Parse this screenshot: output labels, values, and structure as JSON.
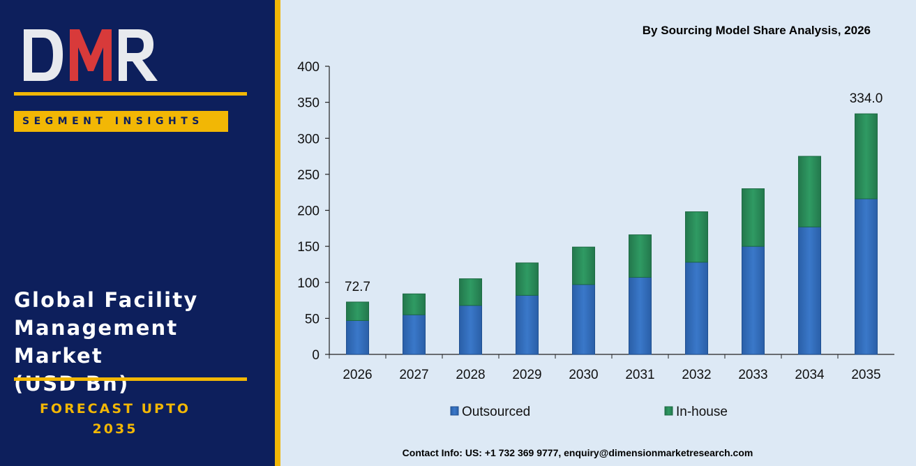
{
  "brand": {
    "logo_text": "DMR",
    "segment_label": "SEGMENT INSIGHTS",
    "market_title_lines": [
      "Global Facility",
      "Management Market",
      "(USD Bn)"
    ],
    "forecast_lines": [
      "FORECAST UPTO",
      "2035"
    ]
  },
  "colors": {
    "navy": "#0d1f5c",
    "gold": "#f2b705",
    "chart_bg": "#dde9f5",
    "outsourced": "#3a78c9",
    "inhouse": "#2f9a63"
  },
  "chart_data": {
    "type": "bar",
    "stacked": true,
    "title": "By Sourcing Model Share Analysis, 2026",
    "categories": [
      "2026",
      "2027",
      "2028",
      "2029",
      "2030",
      "2031",
      "2032",
      "2033",
      "2034",
      "2035"
    ],
    "series": [
      {
        "name": "Outsourced",
        "values": [
          47,
          55,
          68,
          82,
          97,
          107,
          128,
          150,
          177,
          216
        ]
      },
      {
        "name": "In-house",
        "values": [
          25.7,
          29,
          37,
          45,
          52,
          59,
          70,
          80,
          98,
          118
        ]
      }
    ],
    "totals": [
      72.7,
      84,
      105,
      127,
      149,
      166,
      198,
      230,
      275,
      334.0
    ],
    "data_labels": [
      {
        "category": "2026",
        "text": "72.7"
      },
      {
        "category": "2035",
        "text": "334.0"
      }
    ],
    "ylim": [
      0,
      400
    ],
    "yticks": [
      0,
      50,
      100,
      150,
      200,
      250,
      300,
      350,
      400
    ],
    "grid": false,
    "legend_position": "bottom"
  },
  "footer": {
    "contact": "Contact Info: US: +1 732 369 9777, enquiry@dimensionmarketresearch.com"
  }
}
